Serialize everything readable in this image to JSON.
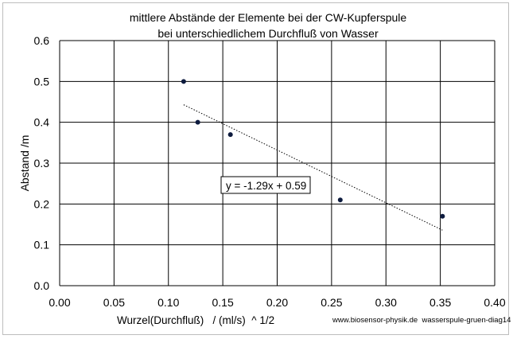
{
  "chart_data": {
    "type": "scatter",
    "title": [
      "mittlere Abstände der Elemente bei der CW-Kupferspule",
      "bei unterschiedlichem Durchfluß von Wasser"
    ],
    "xlabel": "Wurzel(Durchfluß)   / (ml/s)  ^ 1/2",
    "ylabel": "Abstand /m",
    "xlim": [
      0,
      0.4
    ],
    "ylim": [
      0,
      0.6
    ],
    "xticks": [
      0,
      0.05,
      0.1,
      0.15,
      0.2,
      0.25,
      0.3,
      0.35,
      0.4
    ],
    "yticks": [
      0,
      0.1,
      0.2,
      0.3,
      0.4,
      0.5,
      0.6
    ],
    "xtick_labels": [
      "0.00",
      "0.05",
      "0.10",
      "0.15",
      "0.20",
      "0.25",
      "0.30",
      "0.35",
      "0.40"
    ],
    "ytick_labels": [
      "0.0",
      "0.1",
      "0.2",
      "0.3",
      "0.4",
      "0.5",
      "0.6"
    ],
    "grid": true,
    "points": [
      {
        "x": 0.114,
        "y": 0.5
      },
      {
        "x": 0.127,
        "y": 0.4
      },
      {
        "x": 0.157,
        "y": 0.37
      },
      {
        "x": 0.258,
        "y": 0.21
      },
      {
        "x": 0.352,
        "y": 0.17
      }
    ],
    "trendline": {
      "slope": -1.29,
      "intercept": 0.59,
      "x_range": [
        0.114,
        0.352
      ],
      "equation": "y = -1.29x + 0.59"
    },
    "marker_color": "#0d1b3e"
  },
  "footer": {
    "source": "www.biosensor-physik.de  wasserspule-gruen-diag14"
  }
}
